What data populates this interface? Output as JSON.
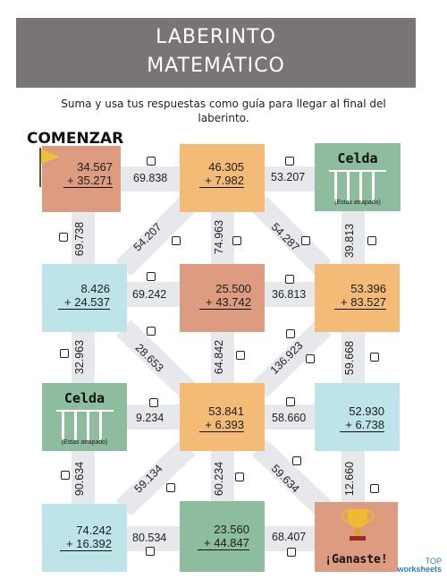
{
  "header": {
    "title_line1": "LABERINTO",
    "title_line2": "MATEMÁTICO"
  },
  "instructions": "Suma y usa tus respuestas como guía para llegar al final del laberinto.",
  "start_label": "COMENZAR",
  "colors": {
    "banner": "#797478",
    "salmon": "#dd9b80",
    "orange": "#f4bb76",
    "blue": "#bde4e8",
    "green": "#8dbd9e",
    "path": "#e7e8ec"
  },
  "nodes": {
    "r0c0": {
      "a": "34.567",
      "b": "+ 35.271"
    },
    "r0c1": {
      "a": "46.305",
      "b": "+ 7.982"
    },
    "r0c2": {
      "title": "Celda",
      "sub": "(Estas atrapado)"
    },
    "r1c0": {
      "a": "8.426",
      "b": "+ 24.537"
    },
    "r1c1": {
      "a": "25.500",
      "b": "+ 43.742"
    },
    "r1c2": {
      "a": "53.396",
      "b": "+ 83.527"
    },
    "r2c0": {
      "title": "Celda",
      "sub": "(Estas atrapado)"
    },
    "r2c1": {
      "a": "53.841",
      "b": "+ 6.393"
    },
    "r2c2": {
      "a": "52.930",
      "b": "+ 6.738"
    },
    "r3c0": {
      "a": "74.242",
      "b": "+ 16.392"
    },
    "r3c1": {
      "a": "23.560",
      "b": "+ 44.847"
    },
    "r3c2": {
      "title": "¡Ganaste!"
    }
  },
  "edges": {
    "h_r0_01": "69.838",
    "h_r0_12": "53.207",
    "h_r1_01": "69.242",
    "h_r1_12": "36.813",
    "h_r2_01": "9.234",
    "h_r2_12": "58.660",
    "h_r3_01": "80.534",
    "h_r3_12": "68.407",
    "v_c0_01": "69.738",
    "v_c1_01": "74.963",
    "v_c2_01": "39.813",
    "v_c0_12": "32.963",
    "v_c1_12": "64.842",
    "v_c2_12": "59.668",
    "v_c0_23": "90.634",
    "v_c1_23": "60.234",
    "v_c2_23": "12.660",
    "d_r01_a": "54.207",
    "d_r01_b": "54.287",
    "d_r12_a": "28.653",
    "d_r12_b": "136.923",
    "d_r23_a": "59.134",
    "d_r23_b": "59.634"
  },
  "logo": {
    "line1": "TOP",
    "line2": "worksheets"
  }
}
